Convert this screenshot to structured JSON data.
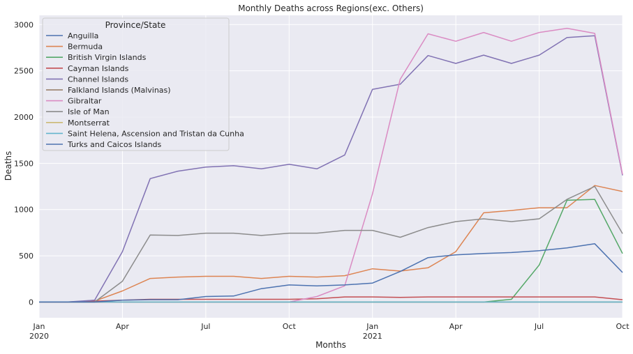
{
  "chart_data": {
    "type": "line",
    "title": "Monthly Deaths across Regions(exc. Others)",
    "xlabel": "Months",
    "ylabel": "Deaths",
    "x": [
      "2020-01",
      "2020-02",
      "2020-03",
      "2020-04",
      "2020-05",
      "2020-06",
      "2020-07",
      "2020-08",
      "2020-09",
      "2020-10",
      "2020-11",
      "2020-12",
      "2021-01",
      "2021-02",
      "2021-03",
      "2021-04",
      "2021-05",
      "2021-06",
      "2021-07",
      "2021-08",
      "2021-09",
      "2021-10"
    ],
    "xlim": [
      "2020-01",
      "2021-10"
    ],
    "ylim": [
      -170,
      3100
    ],
    "yticks": [
      0,
      500,
      1000,
      1500,
      2000,
      2500,
      3000
    ],
    "xticks": [
      {
        "at": "2020-01",
        "label": "Jan",
        "sublabel": "2020"
      },
      {
        "at": "2020-04",
        "label": "Apr",
        "sublabel": ""
      },
      {
        "at": "2020-07",
        "label": "Jul",
        "sublabel": ""
      },
      {
        "at": "2020-10",
        "label": "Oct",
        "sublabel": ""
      },
      {
        "at": "2021-01",
        "label": "Jan",
        "sublabel": "2021"
      },
      {
        "at": "2021-04",
        "label": "Apr",
        "sublabel": ""
      },
      {
        "at": "2021-07",
        "label": "Jul",
        "sublabel": ""
      },
      {
        "at": "2021-10",
        "label": "Oct",
        "sublabel": ""
      }
    ],
    "grid": true,
    "legend": {
      "title": "Province/State",
      "position": "top-left"
    },
    "series": [
      {
        "name": "Anguilla",
        "color": "#4c72b0",
        "values": [
          0,
          0,
          0,
          0,
          0,
          0,
          0,
          0,
          0,
          0,
          0,
          0,
          0,
          0,
          0,
          0,
          0,
          0,
          0,
          0,
          0,
          0
        ]
      },
      {
        "name": "Bermuda",
        "color": "#dd8452",
        "values": [
          0,
          0,
          10,
          120,
          255,
          270,
          278,
          278,
          255,
          278,
          270,
          285,
          360,
          335,
          370,
          545,
          965,
          990,
          1020,
          1020,
          1260,
          1195
        ]
      },
      {
        "name": "British Virgin Islands",
        "color": "#55a868",
        "values": [
          0,
          0,
          0,
          0,
          0,
          0,
          0,
          0,
          0,
          0,
          0,
          0,
          0,
          0,
          0,
          0,
          0,
          30,
          400,
          1100,
          1110,
          525
        ]
      },
      {
        "name": "Cayman Islands",
        "color": "#c44e52",
        "values": [
          0,
          0,
          10,
          20,
          30,
          30,
          30,
          30,
          30,
          30,
          35,
          55,
          55,
          50,
          55,
          55,
          55,
          55,
          55,
          55,
          55,
          25
        ]
      },
      {
        "name": "Channel Islands",
        "color": "#8172b3",
        "values": [
          0,
          0,
          20,
          545,
          1335,
          1415,
          1460,
          1475,
          1440,
          1490,
          1440,
          1590,
          2300,
          2355,
          2665,
          2580,
          2670,
          2580,
          2670,
          2860,
          2880,
          1370
        ]
      },
      {
        "name": "Falkland Islands (Malvinas)",
        "color": "#937860",
        "values": [
          0,
          0,
          0,
          0,
          0,
          0,
          0,
          0,
          0,
          0,
          0,
          0,
          0,
          0,
          0,
          0,
          0,
          0,
          0,
          0,
          0,
          0
        ]
      },
      {
        "name": "Gibraltar",
        "color": "#da8bc3",
        "values": [
          0,
          0,
          0,
          0,
          0,
          0,
          0,
          0,
          0,
          0,
          60,
          175,
          1170,
          2410,
          2900,
          2820,
          2915,
          2820,
          2915,
          2960,
          2905,
          1380
        ]
      },
      {
        "name": "Isle of Man",
        "color": "#8c8c8c",
        "values": [
          0,
          0,
          0,
          225,
          725,
          720,
          745,
          745,
          720,
          745,
          745,
          775,
          775,
          700,
          805,
          870,
          900,
          870,
          900,
          1110,
          1250,
          740
        ]
      },
      {
        "name": "Montserrat",
        "color": "#ccb974",
        "values": [
          0,
          0,
          0,
          0,
          0,
          0,
          0,
          0,
          0,
          0,
          0,
          0,
          0,
          0,
          0,
          0,
          0,
          0,
          0,
          0,
          0,
          0
        ]
      },
      {
        "name": "Saint Helena, Ascension and Tristan da Cunha",
        "color": "#64b5cd",
        "values": [
          0,
          0,
          0,
          0,
          0,
          0,
          0,
          0,
          0,
          0,
          0,
          0,
          0,
          0,
          0,
          0,
          0,
          0,
          0,
          0,
          0,
          0
        ]
      },
      {
        "name": "Turks and Caicos Islands",
        "color": "#4c72b0",
        "values": [
          0,
          0,
          0,
          20,
          25,
          25,
          60,
          65,
          145,
          185,
          175,
          185,
          205,
          330,
          480,
          510,
          525,
          535,
          555,
          585,
          630,
          320
        ]
      }
    ]
  }
}
